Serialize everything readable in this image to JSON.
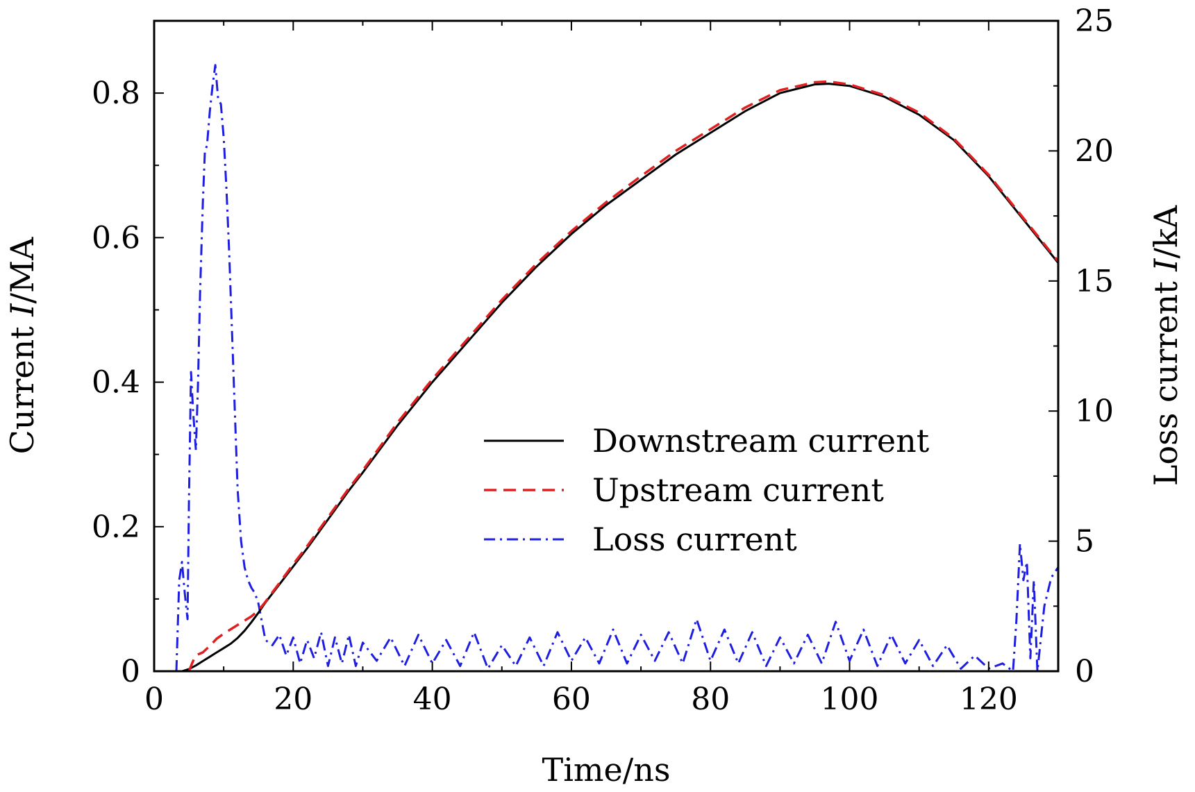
{
  "chart_data": {
    "type": "line",
    "title": "",
    "xlabel": "Time/ns",
    "ylabel_left": {
      "prefix": "Current ",
      "italic": "I",
      "suffix": "/MA"
    },
    "ylabel_right": {
      "prefix": "Loss current ",
      "italic": "I",
      "suffix": "/kA"
    },
    "xlim": [
      0,
      130
    ],
    "ylim_left": [
      0,
      0.9
    ],
    "ylim_right": [
      0,
      25
    ],
    "x_ticks": [
      0,
      20,
      40,
      60,
      80,
      100,
      120
    ],
    "x_tick_labels": [
      "0",
      "20",
      "40",
      "60",
      "80",
      "100",
      "120"
    ],
    "y_left_ticks": [
      0,
      0.2,
      0.4,
      0.6,
      0.8
    ],
    "y_left_tick_labels": [
      "0",
      "0.2",
      "0.4",
      "0.6",
      "0.8"
    ],
    "y_right_ticks": [
      0,
      5,
      10,
      15,
      20,
      25
    ],
    "y_right_tick_labels": [
      "0",
      "5",
      "10",
      "15",
      "20",
      "25"
    ],
    "legend_position": "center-right",
    "grid": false,
    "series": [
      {
        "name": "Downstream current",
        "axis": "left",
        "color": "#000000",
        "dash": "solid",
        "x": [
          4,
          5,
          6,
          7,
          8,
          9,
          10,
          11,
          12,
          13,
          14,
          15,
          16,
          18,
          20,
          22,
          25,
          28,
          30,
          35,
          40,
          45,
          50,
          55,
          60,
          65,
          70,
          75,
          80,
          85,
          90,
          95,
          97,
          100,
          105,
          110,
          115,
          120,
          125,
          130
        ],
        "values": [
          0,
          0.003,
          0.008,
          0.014,
          0.02,
          0.026,
          0.032,
          0.038,
          0.046,
          0.056,
          0.068,
          0.081,
          0.095,
          0.12,
          0.145,
          0.17,
          0.21,
          0.25,
          0.275,
          0.34,
          0.4,
          0.455,
          0.51,
          0.56,
          0.605,
          0.645,
          0.68,
          0.715,
          0.745,
          0.775,
          0.8,
          0.812,
          0.813,
          0.81,
          0.795,
          0.77,
          0.735,
          0.685,
          0.625,
          0.565
        ]
      },
      {
        "name": "Upstream current",
        "axis": "left",
        "color": "#e02020",
        "dash": "dashed",
        "x": [
          5,
          5.5,
          6,
          6.5,
          7,
          8,
          9,
          10,
          11,
          12,
          13,
          14,
          15,
          16,
          18,
          20,
          22,
          25,
          28,
          30,
          35,
          40,
          45,
          50,
          55,
          60,
          65,
          70,
          75,
          80,
          85,
          90,
          95,
          97,
          100,
          105,
          110,
          115,
          120,
          125,
          130
        ],
        "values": [
          0,
          0.012,
          0.022,
          0.024,
          0.026,
          0.035,
          0.045,
          0.052,
          0.058,
          0.064,
          0.07,
          0.076,
          0.084,
          0.096,
          0.122,
          0.148,
          0.173,
          0.213,
          0.253,
          0.278,
          0.344,
          0.404,
          0.459,
          0.514,
          0.564,
          0.609,
          0.649,
          0.685,
          0.72,
          0.75,
          0.78,
          0.804,
          0.815,
          0.816,
          0.812,
          0.797,
          0.773,
          0.737,
          0.687,
          0.627,
          0.567
        ]
      },
      {
        "name": "Loss current",
        "axis": "right",
        "color": "#1e1ee0",
        "dash": "dashdot",
        "x": [
          3.2,
          3.6,
          4.0,
          4.4,
          4.8,
          5.0,
          5.3,
          5.6,
          6.0,
          6.3,
          6.6,
          7.0,
          7.3,
          7.6,
          8.0,
          8.4,
          8.8,
          9.2,
          9.6,
          10.0,
          10.4,
          10.8,
          11.2,
          11.6,
          12.0,
          12.5,
          13.0,
          13.5,
          14.0,
          14.5,
          15.0,
          16,
          17,
          18,
          19,
          20,
          21,
          22,
          23,
          24,
          25,
          26,
          27,
          28,
          29,
          30,
          32,
          34,
          36,
          38,
          40,
          42,
          44,
          46,
          48,
          50,
          52,
          54,
          56,
          58,
          60,
          62,
          64,
          66,
          68,
          70,
          72,
          74,
          76,
          78,
          80,
          82,
          84,
          86,
          88,
          90,
          92,
          94,
          96,
          98,
          100,
          102,
          104,
          106,
          108,
          110,
          112,
          114,
          116,
          118,
          120,
          122,
          123.5,
          124,
          124.5,
          125,
          125.5,
          126,
          126.5,
          127,
          128,
          129,
          130
        ],
        "values": [
          0,
          3.5,
          4.2,
          3.0,
          2.0,
          6.5,
          11.5,
          10.0,
          8.5,
          11.0,
          14.5,
          18.0,
          20.0,
          20.2,
          21.5,
          22.5,
          23.3,
          22.0,
          21.8,
          20.5,
          18.5,
          16.0,
          13.0,
          10.0,
          7.0,
          5.0,
          4.0,
          3.5,
          3.2,
          3.0,
          2.6,
          1.2,
          1.0,
          1.4,
          0.6,
          1.3,
          0.3,
          1.2,
          0.5,
          1.5,
          0.2,
          1.3,
          0.3,
          1.4,
          0.2,
          1.1,
          0.4,
          1.3,
          0.2,
          1.4,
          0.3,
          1.2,
          0.2,
          1.5,
          0.1,
          1.0,
          0.2,
          1.3,
          0.2,
          1.5,
          0.4,
          1.3,
          0.3,
          1.6,
          0.3,
          1.4,
          0.4,
          1.5,
          0.3,
          2.0,
          0.4,
          1.6,
          0.3,
          1.5,
          0.2,
          1.3,
          0.3,
          1.4,
          0.3,
          1.9,
          0.4,
          1.6,
          0.2,
          1.4,
          0.3,
          1.2,
          0.2,
          1.0,
          0.1,
          0.6,
          0.1,
          0.3,
          0.0,
          2.0,
          4.9,
          3.5,
          4.2,
          0.5,
          3.5,
          0.0,
          2.5,
          3.6,
          4.0
        ]
      }
    ]
  }
}
